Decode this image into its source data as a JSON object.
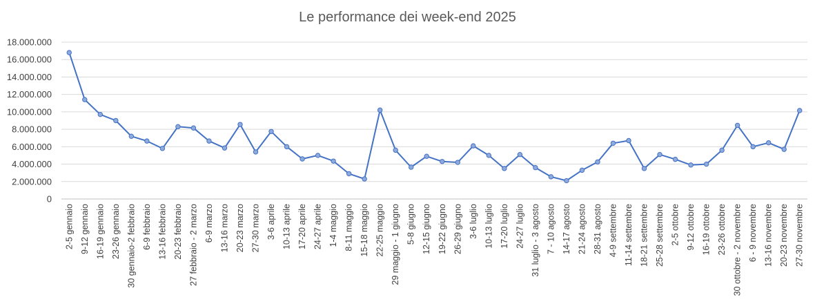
{
  "chart_data": {
    "type": "line",
    "title": "Le performance dei week-end 2025",
    "xlabel": "",
    "ylabel": "",
    "ylim": [
      0,
      18000000
    ],
    "y_ticks": [
      "0",
      "2.000.000",
      "4.000.000",
      "6.000.000",
      "8.000.000",
      "10.000.000",
      "12.000.000",
      "14.000.000",
      "16.000.000",
      "18.000.000"
    ],
    "grid": true,
    "legend": "none",
    "line_color": "#4472C4",
    "marker_fill": "#8FAADC",
    "categories": [
      "2-5 gennaio",
      "9-12 gennaio",
      "16-19 gennaio",
      "23-26 gennaio",
      "30 gennaio-2 febbraio",
      "6-9 febbraio",
      "13-16 febbraio",
      "20-23 febbraio",
      "27 febbraio - 2 marzo",
      "6-9 marzo",
      "13-16 marzo",
      "20-23 marzo",
      "27-30 marzo",
      "3-6 aprile",
      "10-13 aprile",
      "17-20 aprile",
      "24-27 aprile",
      "1-4 maggio",
      "8-11 maggio",
      "15-18 maggio",
      "22-25 maggio",
      "29 maggio - 1 giugno",
      "5-8 giugno",
      "12-15 giugno",
      "19-22 giugno",
      "26-29 giugno",
      "3-6 luglio",
      "10-13 luglio",
      "17-20 luglio",
      "24-27 luglio",
      "31 luglio - 3 agosto",
      "7 - 10 agosto",
      "14-17 agosto",
      "21-24 agosto",
      "28-31 agosto",
      "4-9 settembre",
      "11-14 settembre",
      "18-21 settembre",
      "25-28 settembre",
      "2-5 ottobre",
      "9-12 ottobre",
      "16-19 ottobre",
      "23-26 ottobre",
      "30 ottobre - 2 novembre",
      "6 - 9 novembre",
      "13-16 novembre",
      "20-23 novembre",
      "27-30 novembre"
    ],
    "series": [
      {
        "values": [
          16800000,
          11400000,
          9700000,
          9000000,
          7200000,
          6650000,
          5800000,
          8300000,
          8150000,
          6650000,
          5850000,
          8550000,
          5400000,
          7750000,
          6000000,
          4600000,
          5000000,
          4350000,
          2900000,
          2300000,
          10200000,
          5600000,
          3650000,
          4900000,
          4300000,
          4200000,
          6100000,
          5000000,
          3500000,
          5100000,
          3600000,
          2550000,
          2100000,
          3300000,
          4250000,
          6400000,
          6700000,
          3500000,
          5100000,
          4550000,
          3900000,
          4000000,
          5600000,
          8450000,
          6000000,
          6450000,
          5700000,
          10150000
        ]
      }
    ]
  }
}
